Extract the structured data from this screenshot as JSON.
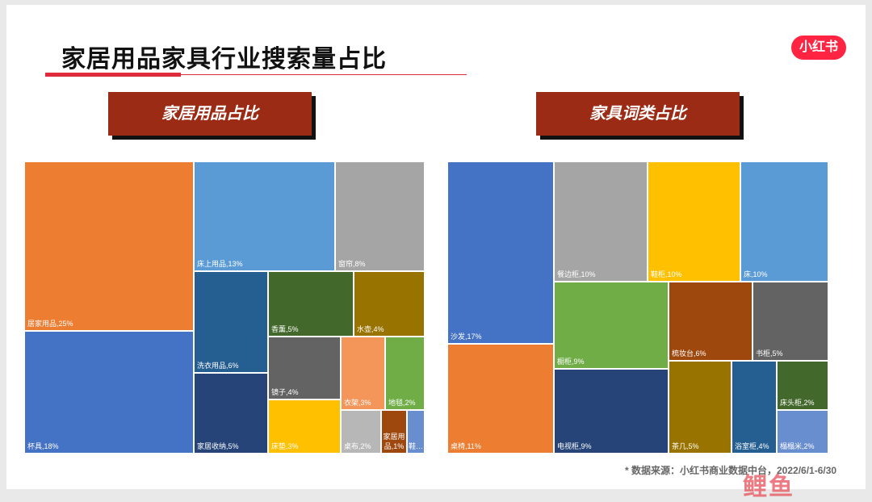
{
  "header": {
    "title": "家居用品家具行业搜索量占比",
    "logo_text": "小红书"
  },
  "footer": {
    "source": "* 数据来源：小红书商业数据中台，2022/6/1-6/30",
    "watermark": "鲤鱼"
  },
  "chart_data": [
    {
      "type": "treemap",
      "title": "家居用品占比",
      "items": [
        {
          "label": "居家用品,25%",
          "name": "居家用品",
          "value": 25,
          "color": "#ed7d31"
        },
        {
          "label": "杯具,18%",
          "name": "杯具",
          "value": 18,
          "color": "#4472c4"
        },
        {
          "label": "床上用品,13%",
          "name": "床上用品",
          "value": 13,
          "color": "#5b9bd5"
        },
        {
          "label": "窗帘,8%",
          "name": "窗帘",
          "value": 8,
          "color": "#a5a5a5"
        },
        {
          "label": "洗衣用品,6%",
          "name": "洗衣用品",
          "value": 6,
          "color": "#255e91"
        },
        {
          "label": "家居收纳,5%",
          "name": "家居收纳",
          "value": 5,
          "color": "#264478"
        },
        {
          "label": "香薰,5%",
          "name": "香薰",
          "value": 5,
          "color": "#43682b"
        },
        {
          "label": "水壶,4%",
          "name": "水壶",
          "value": 4,
          "color": "#997300"
        },
        {
          "label": "镜子,4%",
          "name": "镜子",
          "value": 4,
          "color": "#636363"
        },
        {
          "label": "衣架,3%",
          "name": "衣架",
          "value": 3,
          "color": "#f4965a"
        },
        {
          "label": "地毯,2%",
          "name": "地毯",
          "value": 2,
          "color": "#70ad47"
        },
        {
          "label": "床垫,3%",
          "name": "床垫",
          "value": 3,
          "color": "#ffc000"
        },
        {
          "label": "桌布,2%",
          "name": "桌布",
          "value": 2,
          "color": "#b7b7b7"
        },
        {
          "label": "家居用品,1%",
          "name": "家居用品",
          "value": 1,
          "color": "#9e480e"
        },
        {
          "label": "鞋…",
          "name": "鞋…",
          "value": 1,
          "color": "#698ed0"
        }
      ]
    },
    {
      "type": "treemap",
      "title": "家具词类占比",
      "items": [
        {
          "label": "沙发,17%",
          "name": "沙发",
          "value": 17,
          "color": "#4472c4"
        },
        {
          "label": "桌椅,11%",
          "name": "桌椅",
          "value": 11,
          "color": "#ed7d31"
        },
        {
          "label": "餐边柜,10%",
          "name": "餐边柜",
          "value": 10,
          "color": "#a5a5a5"
        },
        {
          "label": "鞋柜,10%",
          "name": "鞋柜",
          "value": 10,
          "color": "#ffc000"
        },
        {
          "label": "床,10%",
          "name": "床",
          "value": 10,
          "color": "#5b9bd5"
        },
        {
          "label": "橱柜,9%",
          "name": "橱柜",
          "value": 9,
          "color": "#70ad47"
        },
        {
          "label": "电视柜,9%",
          "name": "电视柜",
          "value": 9,
          "color": "#264478"
        },
        {
          "label": "梳妆台,6%",
          "name": "梳妆台",
          "value": 6,
          "color": "#9e480e"
        },
        {
          "label": "书柜,5%",
          "name": "书柜",
          "value": 5,
          "color": "#636363"
        },
        {
          "label": "茶几,5%",
          "name": "茶几",
          "value": 5,
          "color": "#997300"
        },
        {
          "label": "浴室柜,4%",
          "name": "浴室柜",
          "value": 4,
          "color": "#255e91"
        },
        {
          "label": "床头柜,2%",
          "name": "床头柜",
          "value": 2,
          "color": "#43682b"
        },
        {
          "label": "榻榻米,2%",
          "name": "榻榻米",
          "value": 2,
          "color": "#698ed0"
        }
      ]
    }
  ]
}
